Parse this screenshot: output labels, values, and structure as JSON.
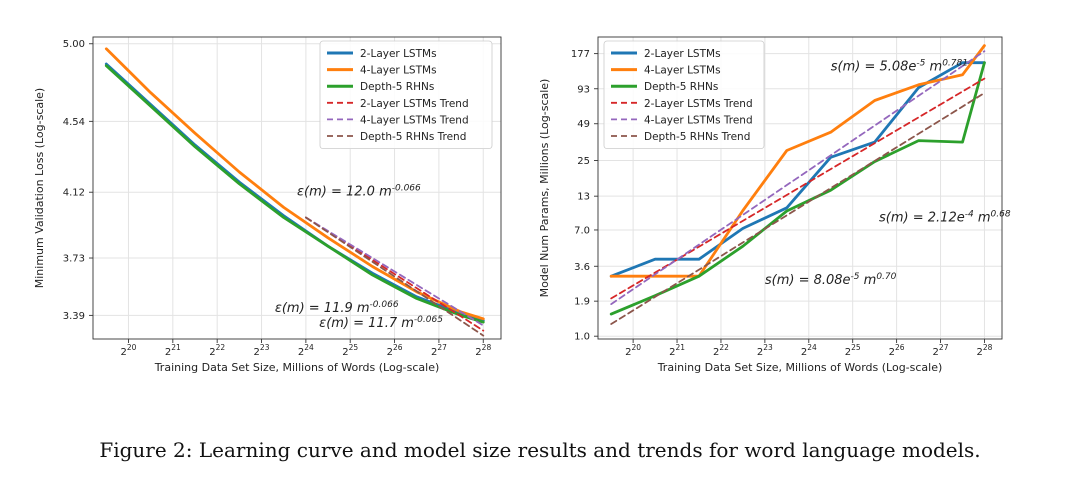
{
  "caption": "Figure 2: Learning curve and model size results and trends for word language models.",
  "colors": {
    "blue": "#1f77b4",
    "orange": "#ff7f0e",
    "green": "#2ca02c",
    "red": "#d62728",
    "purple": "#9467bd",
    "brown": "#8c564b"
  },
  "chart_data": [
    {
      "type": "line",
      "xlabel": "Training Data Set Size, Millions of Words (Log-scale)",
      "ylabel": "Minimum Validation Loss (Log-scale)",
      "x_ticks": [
        20,
        21,
        22,
        23,
        24,
        25,
        26,
        27,
        28
      ],
      "x_tick_base": "2",
      "xlim": [
        19.2,
        28.4
      ],
      "y_ticks": [
        "5.00",
        "4.54",
        "4.12",
        "3.73",
        "3.39"
      ],
      "ylim": [
        3.25,
        5.04
      ],
      "grid": true,
      "legend_position": "top-right",
      "series": [
        {
          "name": "2-Layer LSTMs",
          "color": "blue",
          "style": "solid",
          "x": [
            19.5,
            20.5,
            21.5,
            22.5,
            23.5,
            24.5,
            25.5,
            26.5,
            27.5,
            28.0
          ],
          "y": [
            4.88,
            4.64,
            4.4,
            4.18,
            3.98,
            3.8,
            3.64,
            3.5,
            3.4,
            3.36
          ]
        },
        {
          "name": "4-Layer LSTMs",
          "color": "orange",
          "style": "solid",
          "x": [
            19.5,
            20.5,
            21.5,
            22.5,
            23.5,
            24.5,
            25.5,
            26.5,
            27.5,
            28.0
          ],
          "y": [
            4.97,
            4.71,
            4.47,
            4.24,
            4.03,
            3.85,
            3.68,
            3.53,
            3.41,
            3.37
          ]
        },
        {
          "name": "Depth-5 RHNs",
          "color": "green",
          "style": "solid",
          "x": [
            19.5,
            20.5,
            21.5,
            22.5,
            23.5,
            24.5,
            25.5,
            26.5,
            27.5,
            28.0
          ],
          "y": [
            4.87,
            4.63,
            4.39,
            4.17,
            3.97,
            3.8,
            3.63,
            3.49,
            3.39,
            3.35
          ]
        },
        {
          "name": "2-Layer LSTMs Trend",
          "color": "red",
          "style": "dashed",
          "x": [
            24.0,
            28.0
          ],
          "y": [
            3.97,
            3.3
          ]
        },
        {
          "name": "4-Layer LSTMs Trend",
          "color": "purple",
          "style": "dashed",
          "x": [
            24.0,
            28.0
          ],
          "y": [
            3.97,
            3.33
          ]
        },
        {
          "name": "Depth-5 RHNs Trend",
          "color": "brown",
          "style": "dashed",
          "x": [
            24.0,
            28.0
          ],
          "y": [
            3.97,
            3.27
          ]
        }
      ],
      "annotations": [
        {
          "pre": "ε(m) = 12.0 m",
          "sup": "-0.066",
          "x": 23.8,
          "y": 4.1
        },
        {
          "pre": "ε(m) = 11.9 m",
          "sup": "-0.066",
          "x": 23.3,
          "y": 3.41
        },
        {
          "pre": "ε(m) = 11.7 m",
          "sup": "-0.065",
          "x": 24.3,
          "y": 3.32
        }
      ]
    },
    {
      "type": "line",
      "xlabel": "Training Data Set Size, Millions of Words (Log-scale)",
      "ylabel": "Model Num Params, Millions (Log-scale)",
      "x_ticks": [
        20,
        21,
        22,
        23,
        24,
        25,
        26,
        27,
        28
      ],
      "x_tick_base": "2",
      "xlim": [
        19.2,
        28.4
      ],
      "y_ticks": [
        "177",
        "93",
        "49",
        "25",
        "13",
        "7.0",
        "3.6",
        "1.9",
        "1.0"
      ],
      "ylim": [
        0.95,
        240
      ],
      "grid": true,
      "legend_position": "top-left",
      "series": [
        {
          "name": "2-Layer LSTMs",
          "color": "blue",
          "style": "solid",
          "x": [
            19.5,
            20.5,
            21.5,
            22.5,
            23.5,
            24.5,
            25.5,
            26.5,
            27.5,
            28.0
          ],
          "y": [
            3.0,
            4.1,
            4.1,
            7.2,
            10.5,
            26.5,
            35.0,
            95.0,
            150.0,
            150.0
          ]
        },
        {
          "name": "4-Layer LSTMs",
          "color": "orange",
          "style": "solid",
          "x": [
            19.5,
            20.5,
            21.5,
            22.5,
            23.5,
            24.5,
            25.5,
            26.5,
            27.5,
            28.0
          ],
          "y": [
            3.0,
            3.0,
            3.0,
            10.0,
            30.0,
            42.0,
            75.0,
            100.0,
            120.0,
            205.0
          ]
        },
        {
          "name": "Depth-5 RHNs",
          "color": "green",
          "style": "solid",
          "x": [
            19.5,
            20.5,
            21.5,
            22.5,
            23.5,
            24.5,
            25.5,
            26.5,
            27.5,
            28.0
          ],
          "y": [
            1.5,
            2.1,
            3.0,
            5.2,
            9.9,
            14.5,
            24.5,
            36.0,
            35.0,
            150.0
          ]
        },
        {
          "name": "2-Layer LSTMs Trend",
          "color": "red",
          "style": "dashed",
          "x": [
            19.5,
            28.0
          ],
          "y": [
            2.0,
            112.0
          ]
        },
        {
          "name": "4-Layer LSTMs Trend",
          "color": "purple",
          "style": "dashed",
          "x": [
            19.5,
            28.0
          ],
          "y": [
            1.8,
            185.0
          ]
        },
        {
          "name": "Depth-5 RHNs Trend",
          "color": "brown",
          "style": "dashed",
          "x": [
            19.5,
            28.0
          ],
          "y": [
            1.25,
            86.0
          ]
        }
      ],
      "annotations": [
        {
          "pre": "s(m) = 5.08e",
          "sup1": "-5",
          "mid": " m",
          "sup": "0.781",
          "x": 24.5,
          "y": 130
        },
        {
          "pre": "s(m) = 2.12e",
          "sup1": "-4",
          "mid": " m",
          "sup": "0.68",
          "x": 25.6,
          "y": 8.2
        },
        {
          "pre": "s(m) = 8.08e",
          "sup1": "-5",
          "mid": " m",
          "sup": "0.70",
          "x": 23.0,
          "y": 2.6
        }
      ]
    }
  ]
}
